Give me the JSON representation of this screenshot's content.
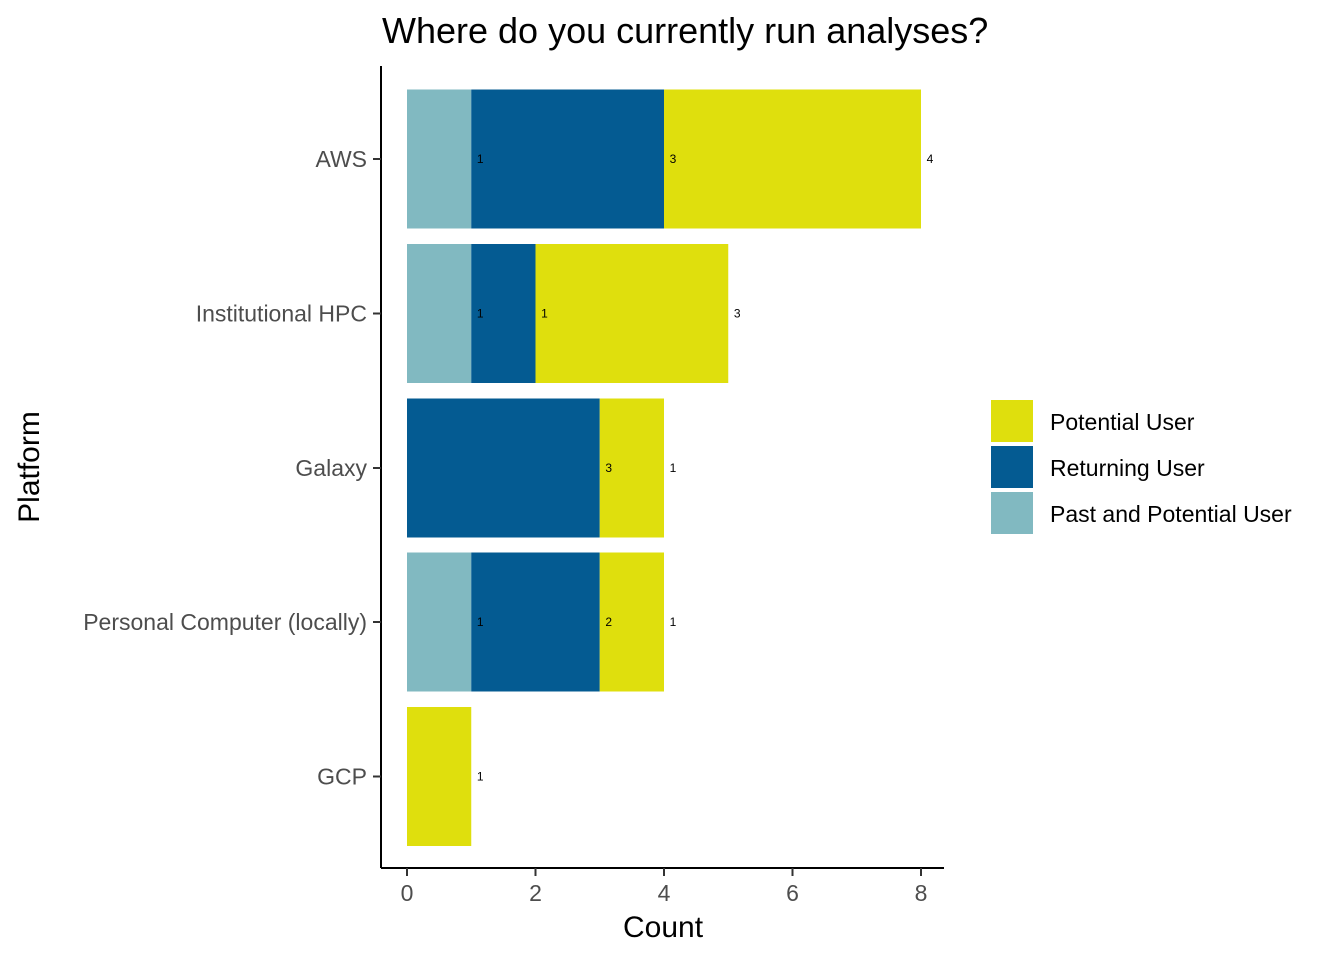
{
  "chart_data": {
    "type": "bar",
    "orientation": "horizontal",
    "stacked": true,
    "title": "Where do you currently run analyses?",
    "xlabel": "Count",
    "ylabel": "Platform",
    "xlim": [
      0,
      8.4
    ],
    "x_ticks": [
      "0",
      "2",
      "4",
      "6",
      "8"
    ],
    "categories": [
      "AWS",
      "Institutional HPC",
      "Galaxy",
      "Personal Computer (locally)",
      "GCP"
    ],
    "series": [
      {
        "name": "Past and Potential User",
        "color": "#81b9c1",
        "values": [
          1,
          1,
          0,
          1,
          0
        ]
      },
      {
        "name": "Returning User",
        "color": "#045b92",
        "values": [
          3,
          1,
          3,
          2,
          0
        ]
      },
      {
        "name": "Potential User",
        "color": "#dfdf0d",
        "values": [
          4,
          3,
          1,
          1,
          1
        ]
      }
    ],
    "legend_order": [
      "Potential User",
      "Returning User",
      "Past and Potential User"
    ],
    "legend_position": "right",
    "grid": false
  }
}
